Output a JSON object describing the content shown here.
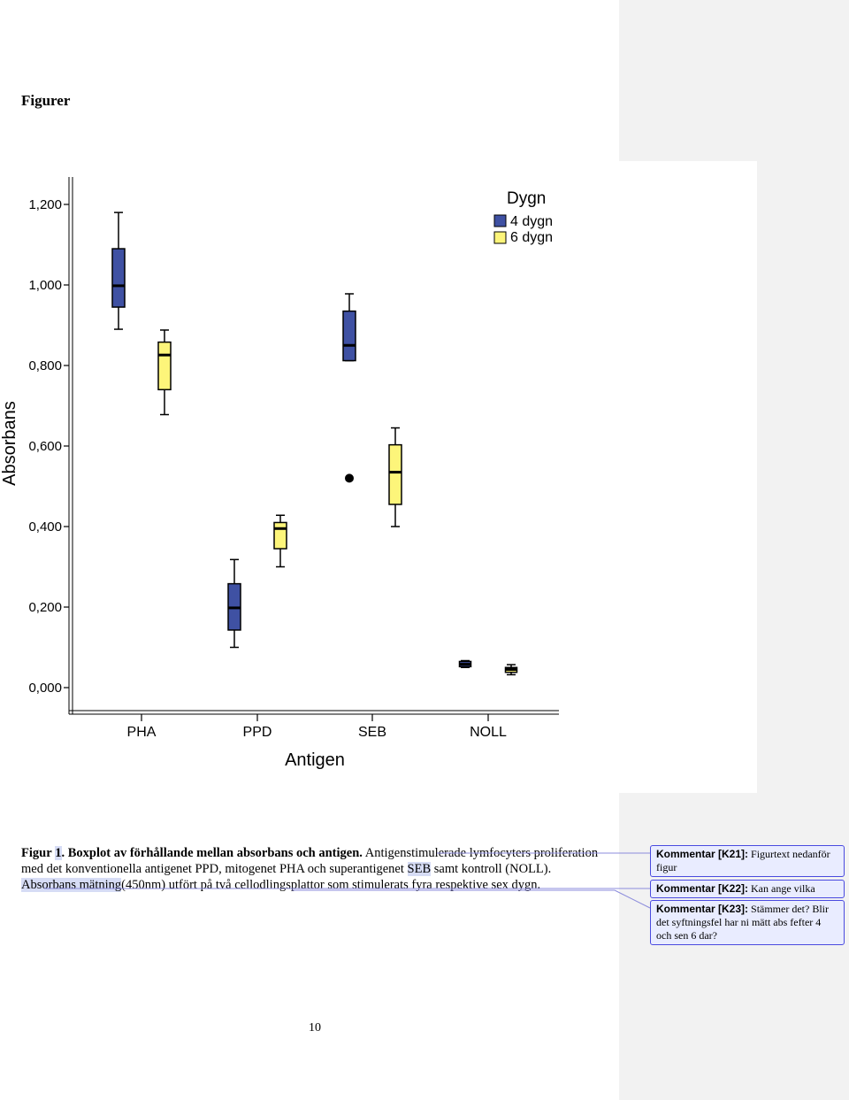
{
  "heading": "Figurer",
  "chart_data": {
    "type": "boxplot",
    "xlabel": "Antigen",
    "ylabel": "Absorbans",
    "ylim": [
      0.0,
      1.2
    ],
    "yticks": [
      "0,000",
      "0,200",
      "0,400",
      "0,600",
      "0,800",
      "1,000",
      "1,200"
    ],
    "ytick_values": [
      0,
      0.2,
      0.4,
      0.6,
      0.8,
      1.0,
      1.2
    ],
    "categories": [
      "PHA",
      "PPD",
      "SEB",
      "NOLL"
    ],
    "legend": {
      "title": "Dygn",
      "position": "top-right"
    },
    "series": [
      {
        "name": "4 dygn",
        "color": "#3f51a3",
        "boxes": [
          {
            "category": "PHA",
            "min": 0.89,
            "q1": 0.945,
            "median": 0.998,
            "q3": 1.09,
            "max": 1.18
          },
          {
            "category": "PPD",
            "min": 0.1,
            "q1": 0.143,
            "median": 0.198,
            "q3": 0.258,
            "max": 0.318
          },
          {
            "category": "SEB",
            "min": 0.812,
            "q1": 0.812,
            "median": 0.85,
            "q3": 0.935,
            "max": 0.978,
            "outliers": [
              0.52
            ]
          },
          {
            "category": "NOLL",
            "min": 0.05,
            "q1": 0.052,
            "median": 0.058,
            "q3": 0.065,
            "max": 0.067
          }
        ]
      },
      {
        "name": "6 dygn",
        "color": "#fdf57a",
        "boxes": [
          {
            "category": "PHA",
            "min": 0.678,
            "q1": 0.74,
            "median": 0.826,
            "q3": 0.858,
            "max": 0.888
          },
          {
            "category": "PPD",
            "min": 0.3,
            "q1": 0.345,
            "median": 0.395,
            "q3": 0.41,
            "max": 0.428
          },
          {
            "category": "SEB",
            "min": 0.4,
            "q1": 0.455,
            "median": 0.535,
            "q3": 0.603,
            "max": 0.645
          },
          {
            "category": "NOLL",
            "min": 0.032,
            "q1": 0.038,
            "median": 0.045,
            "q3": 0.05,
            "max": 0.057
          }
        ]
      }
    ]
  },
  "caption": {
    "fig_word": "Figur",
    "fig_num": "1",
    "title": ". Boxplot av förhållande mellan absorbans och antigen.",
    "text1": " Antigenstimulerade lymfocyters proliferation med det konventionella antigenet PPD, mitogenet PHA och superantigenet ",
    "seb": "SEB",
    "text2": " samt kontroll (NOLL). ",
    "text3": "Absorbans mätning",
    "text4": "(450nm) utfört på två cellodlingsplattor som stimulerats fyra respektive sex dygn."
  },
  "comments": [
    {
      "label": "Kommentar [K21]:",
      "text": " Figurtext nedanför figur"
    },
    {
      "label": "Kommentar [K22]:",
      "text": " Kan ange vilka"
    },
    {
      "label": "Kommentar [K23]:",
      "text": " Stämmer det? Blir det syftningsfel har ni mätt abs fefter 4 och sen 6 dar?"
    }
  ],
  "page_number": "10"
}
